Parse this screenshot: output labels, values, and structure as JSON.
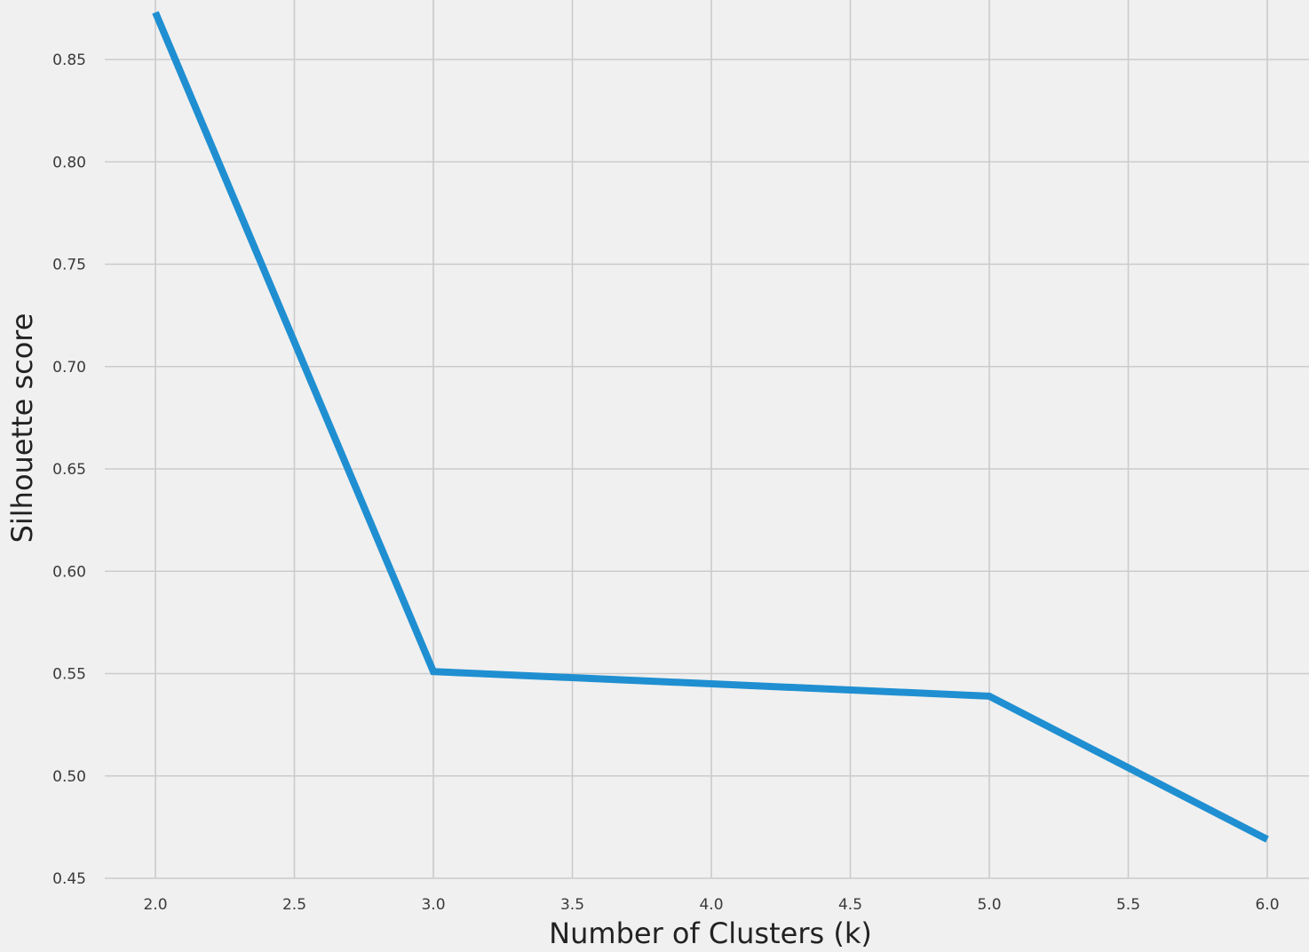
{
  "chart_data": {
    "type": "line",
    "title": "",
    "xlabel": "Number of Clusters (k)",
    "ylabel": "Silhouette score",
    "x": [
      2,
      3,
      4,
      5,
      6
    ],
    "series": [
      {
        "values": [
          0.873,
          0.551,
          0.545,
          0.539,
          0.469
        ],
        "color": "#1f8fd1"
      }
    ],
    "xlim": [
      1.8,
      6.1
    ],
    "ylim": [
      0.45,
      0.873
    ],
    "xticks": [
      2.0,
      2.5,
      3.0,
      3.5,
      4.0,
      4.5,
      5.0,
      5.5,
      6.0
    ],
    "xtick_labels": [
      "2.0",
      "2.5",
      "3.0",
      "3.5",
      "4.0",
      "4.5",
      "5.0",
      "5.5",
      "6.0"
    ],
    "yticks": [
      0.45,
      0.5,
      0.55,
      0.6,
      0.65,
      0.7,
      0.75,
      0.8,
      0.85
    ],
    "ytick_labels": [
      "0.45",
      "0.50",
      "0.55",
      "0.60",
      "0.65",
      "0.70",
      "0.75",
      "0.80",
      "0.85"
    ],
    "grid": true,
    "background_color": "#f0f0f0",
    "grid_color": "#cbcbcb"
  }
}
